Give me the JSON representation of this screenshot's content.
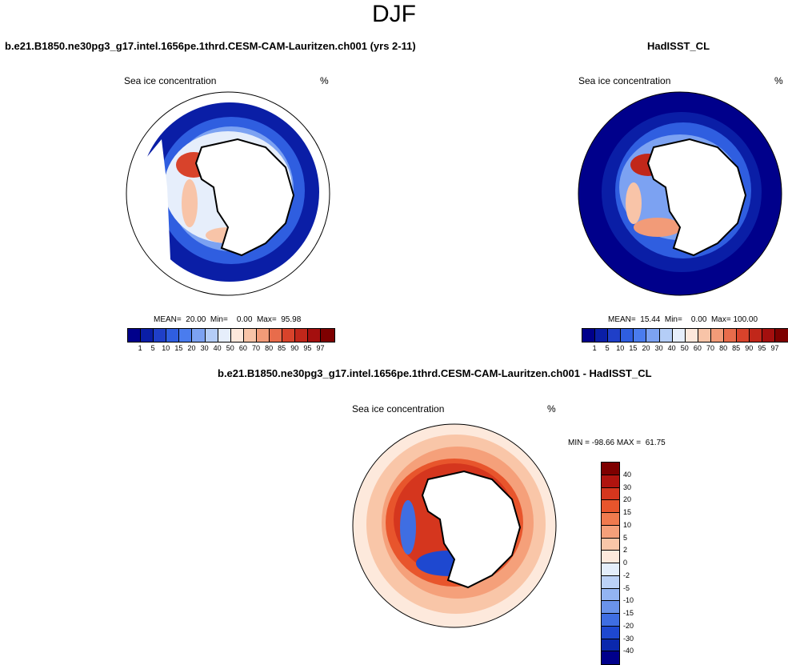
{
  "title": "DJF",
  "panels": [
    {
      "case_title": "b.e21.B1850.ne30pg3_g17.intel.1656pe.1thrd.CESM-CAM-Lauritzen.ch001 (yrs 2-11)",
      "left_label": "Sea ice concentration",
      "right_label": "%",
      "stats": "MEAN=  20.00  Min=    0.00  Max=  95.98"
    },
    {
      "case_title": "HadISST_CL",
      "left_label": "Sea ice concentration",
      "right_label": "%",
      "stats": "MEAN=  15.44  Min=    0.00  Max= 100.00"
    }
  ],
  "diff": {
    "case_title": "b.e21.B1850.ne30pg3_g17.intel.1656pe.1thrd.CESM-CAM-Lauritzen.ch001 - HadISST_CL",
    "left_label": "Sea ice concentration",
    "right_label": "%",
    "stats": "MIN = -98.66 MAX =  61.75"
  },
  "colorbar_main": {
    "labels": [
      "1",
      "5",
      "10",
      "15",
      "20",
      "30",
      "40",
      "50",
      "60",
      "70",
      "80",
      "85",
      "90",
      "95",
      "97"
    ],
    "colors": [
      "#00008b",
      "#0a1ea6",
      "#1f3fc8",
      "#2f5ee0",
      "#4a7cee",
      "#7ca2f2",
      "#b4cdf7",
      "#e6eefb",
      "#fde8dc",
      "#f8c4a8",
      "#f29b78",
      "#e86c4b",
      "#d8432b",
      "#c1271a",
      "#a40f0e",
      "#7e0000"
    ]
  },
  "colorbar_diff": {
    "labels": [
      "40",
      "30",
      "20",
      "15",
      "10",
      "5",
      "2",
      "0",
      "-2",
      "-5",
      "-10",
      "-15",
      "-20",
      "-30",
      "-40"
    ],
    "colors": [
      "#7e0000",
      "#b0140f",
      "#d5361e",
      "#e8552c",
      "#f07a4e",
      "#f5a07a",
      "#f9c6a8",
      "#fde9dc",
      "#e4eefb",
      "#bcd2f7",
      "#93b4f2",
      "#6a93ea",
      "#3f6ee2",
      "#1e48d0",
      "#0a28ad",
      "#00008b"
    ]
  }
}
